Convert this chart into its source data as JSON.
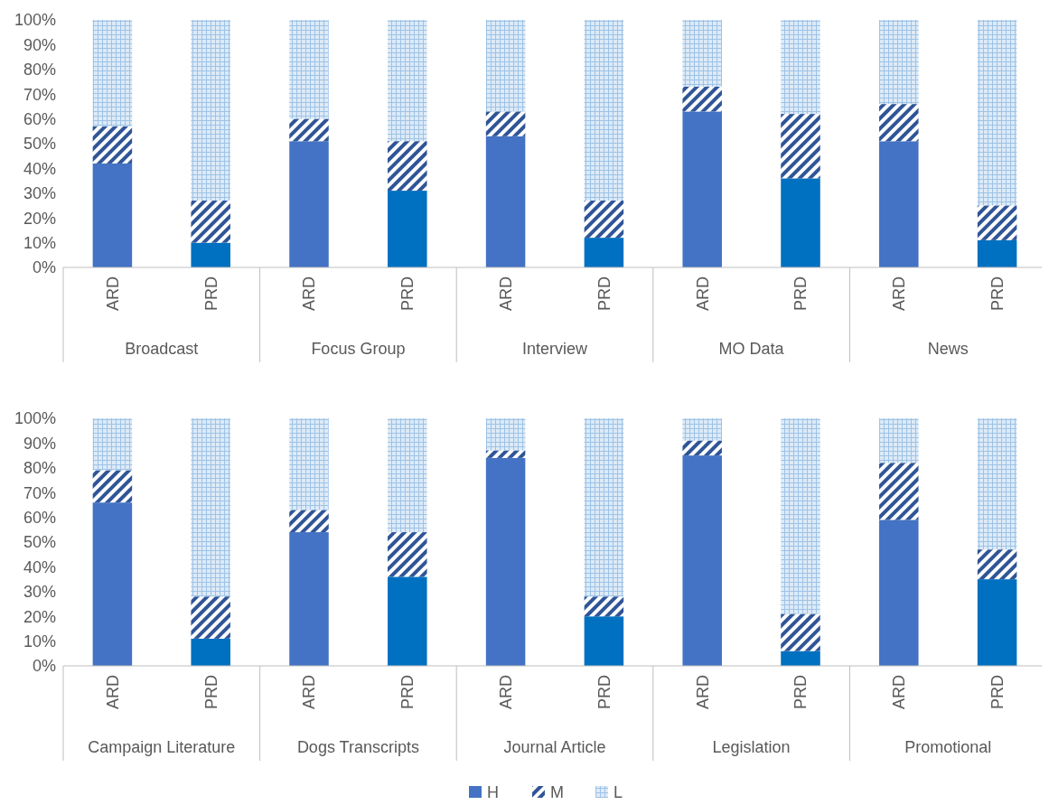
{
  "chart_data": [
    {
      "type": "bar",
      "stacked": true,
      "categories": [
        "ARD",
        "PRD",
        "ARD",
        "PRD",
        "ARD",
        "PRD",
        "ARD",
        "PRD",
        "ARD",
        "PRD"
      ],
      "annotations": [
        "Broadcast",
        "Focus Group",
        "Interview",
        "MO Data",
        "News"
      ],
      "ylim": [
        0,
        100
      ],
      "yticks": [
        {
          "value": 0,
          "label": "0%"
        },
        {
          "value": 10,
          "label": "10%"
        },
        {
          "value": 20,
          "label": "20%"
        },
        {
          "value": 30,
          "label": "30%"
        },
        {
          "value": 40,
          "label": "40%"
        },
        {
          "value": 50,
          "label": "50%"
        },
        {
          "value": 60,
          "label": "60%"
        },
        {
          "value": 70,
          "label": "70%"
        },
        {
          "value": 80,
          "label": "80%"
        },
        {
          "value": 90,
          "label": "90%"
        },
        {
          "value": 100,
          "label": "100%"
        }
      ],
      "series": [
        {
          "colors": [
            "#4472c4",
            "#0070c0",
            "#4472c4",
            "#0070c0",
            "#4472c4",
            "#0070c0",
            "#4472c4",
            "#0070c0",
            "#4472c4",
            "#0070c0"
          ],
          "values": [
            42,
            10,
            51,
            31,
            53,
            12,
            63,
            36,
            51,
            11
          ]
        },
        {
          "color": "#2f5597",
          "values": [
            15,
            17,
            9,
            20,
            10,
            15,
            10,
            26,
            15,
            14
          ]
        },
        {
          "color": "#9dc3e6",
          "values": [
            43,
            73,
            40,
            49,
            37,
            73,
            27,
            38,
            34,
            75
          ]
        }
      ]
    },
    {
      "type": "bar",
      "stacked": true,
      "categories": [
        "ARD",
        "PRD",
        "ARD",
        "PRD",
        "ARD",
        "PRD",
        "ARD",
        "PRD",
        "ARD",
        "PRD"
      ],
      "annotations": [
        "Campaign Literature",
        "Dogs Transcripts",
        "Journal Article",
        "Legislation",
        "Promotional"
      ],
      "ylim": [
        0,
        100
      ],
      "yticks": [
        {
          "value": 0,
          "label": "0%"
        },
        {
          "value": 10,
          "label": "10%"
        },
        {
          "value": 20,
          "label": "20%"
        },
        {
          "value": 30,
          "label": "30%"
        },
        {
          "value": 40,
          "label": "40%"
        },
        {
          "value": 50,
          "label": "50%"
        },
        {
          "value": 60,
          "label": "60%"
        },
        {
          "value": 70,
          "label": "70%"
        },
        {
          "value": 80,
          "label": "80%"
        },
        {
          "value": 90,
          "label": "90%"
        },
        {
          "value": 100,
          "label": "100%"
        }
      ],
      "legend": "bottom",
      "series": [
        {
          "name": "H",
          "colors": [
            "#4472c4",
            "#0070c0",
            "#4472c4",
            "#0070c0",
            "#4472c4",
            "#0070c0",
            "#4472c4",
            "#0070c0",
            "#4472c4",
            "#0070c0"
          ],
          "values": [
            66,
            11,
            54,
            36,
            84,
            20,
            85,
            6,
            59,
            35
          ]
        },
        {
          "name": "M",
          "color": "#2f5597",
          "values": [
            13,
            17,
            9,
            18,
            3,
            8,
            6,
            15,
            23,
            12
          ]
        },
        {
          "name": "L",
          "color": "#9dc3e6",
          "values": [
            21,
            72,
            37,
            46,
            13,
            72,
            9,
            79,
            18,
            53
          ]
        }
      ]
    }
  ]
}
